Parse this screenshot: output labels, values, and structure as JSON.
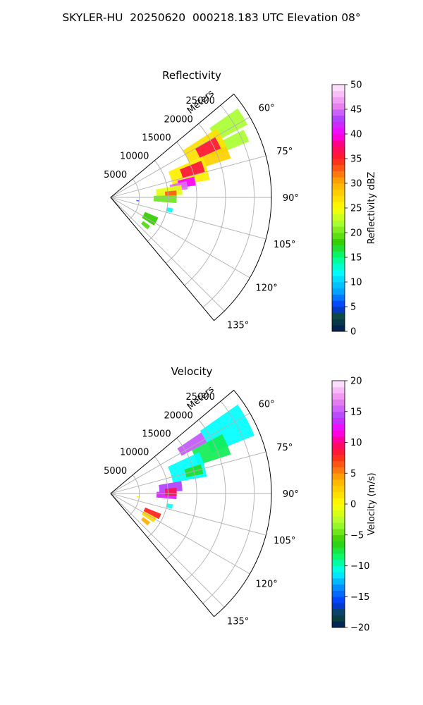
{
  "title": "SKYLER-HU  20250620  000218.183 UTC Elevation 08°",
  "range_axis_label": "Meters",
  "chart_data": [
    {
      "type": "heatmap",
      "subtitle": "Reflectivity",
      "projection": "polar sector (PPI)",
      "azimuth_range_deg": [
        50,
        140
      ],
      "range_limit_m": 28000,
      "radial_tick_labels": [
        "5000",
        "10000",
        "15000",
        "20000",
        "25000"
      ],
      "radial_ticks_m": [
        5000,
        10000,
        15000,
        20000,
        25000
      ],
      "azimuth_tick_labels": [
        "60°",
        "75°",
        "90°",
        "105°",
        "120°",
        "135°"
      ],
      "azimuth_ticks_deg": [
        60,
        75,
        90,
        105,
        120,
        135
      ],
      "grid": true,
      "colorbar": {
        "label": "Reflectivity dBZ",
        "range": [
          0,
          50
        ],
        "tick_labels": [
          "0",
          "5",
          "10",
          "15",
          "20",
          "25",
          "30",
          "35",
          "40",
          "45",
          "50"
        ],
        "ticks": [
          0,
          5,
          10,
          15,
          20,
          25,
          30,
          35,
          40,
          45,
          50
        ],
        "colormap_stops": [
          {
            "v": 0,
            "color": "#001a5a"
          },
          {
            "v": 3,
            "color": "#0f4a3a"
          },
          {
            "v": 5,
            "color": "#0033ff"
          },
          {
            "v": 8,
            "color": "#00a0ff"
          },
          {
            "v": 12,
            "color": "#00ffff"
          },
          {
            "v": 15,
            "color": "#00ff80"
          },
          {
            "v": 18,
            "color": "#33cc00"
          },
          {
            "v": 22,
            "color": "#aaff33"
          },
          {
            "v": 25,
            "color": "#ffff00"
          },
          {
            "v": 30,
            "color": "#ffb000"
          },
          {
            "v": 35,
            "color": "#ff2020"
          },
          {
            "v": 38,
            "color": "#ff0080"
          },
          {
            "v": 40,
            "color": "#ff00ff"
          },
          {
            "v": 43,
            "color": "#b040ff"
          },
          {
            "v": 46,
            "color": "#ee88ee"
          },
          {
            "v": 50,
            "color": "#ffeeff"
          }
        ]
      },
      "echo_regions": [
        {
          "azimuth_deg": [
            55,
            62
          ],
          "range_m": [
            21000,
            27000
          ],
          "value": 22
        },
        {
          "azimuth_deg": [
            63,
            68
          ],
          "range_m": [
            19000,
            26000
          ],
          "value": 22
        },
        {
          "azimuth_deg": [
            57,
            66
          ],
          "range_m": [
            15000,
            22000
          ],
          "value": 27
        },
        {
          "azimuth_deg": [
            66,
            72
          ],
          "range_m": [
            17000,
            22000
          ],
          "value": 28
        },
        {
          "azimuth_deg": [
            60,
            66
          ],
          "range_m": [
            17000,
            21000
          ],
          "value": 36
        },
        {
          "azimuth_deg": [
            66,
            80
          ],
          "range_m": [
            11000,
            17500
          ],
          "value": 26
        },
        {
          "azimuth_deg": [
            68,
            75
          ],
          "range_m": [
            13000,
            17000
          ],
          "value": 36
        },
        {
          "azimuth_deg": [
            76,
            82
          ],
          "range_m": [
            12000,
            15000
          ],
          "value": 40
        },
        {
          "azimuth_deg": [
            78,
            84
          ],
          "range_m": [
            10500,
            13500
          ],
          "value": 45
        },
        {
          "azimuth_deg": [
            80,
            88
          ],
          "range_m": [
            8000,
            12500
          ],
          "value": 24
        },
        {
          "azimuth_deg": [
            84,
            89
          ],
          "range_m": [
            9500,
            11500
          ],
          "value": 33
        },
        {
          "azimuth_deg": [
            88,
            95
          ],
          "range_m": [
            7500,
            11500
          ],
          "value": 20
        },
        {
          "azimuth_deg": [
            113,
            123
          ],
          "range_m": [
            6500,
            9000
          ],
          "value": 18
        },
        {
          "azimuth_deg": [
            126,
            131
          ],
          "range_m": [
            7000,
            8500
          ],
          "value": 19
        },
        {
          "azimuth_deg": [
            100,
            104
          ],
          "range_m": [
            10000,
            11000
          ],
          "value": 12
        },
        {
          "azimuth_deg": [
            96,
            98
          ],
          "range_m": [
            4500,
            5000
          ],
          "value": 6
        }
      ]
    },
    {
      "type": "heatmap",
      "subtitle": "Velocity",
      "projection": "polar sector (PPI)",
      "azimuth_range_deg": [
        50,
        140
      ],
      "range_limit_m": 28000,
      "radial_tick_labels": [
        "5000",
        "10000",
        "15000",
        "20000",
        "25000"
      ],
      "radial_ticks_m": [
        5000,
        10000,
        15000,
        20000,
        25000
      ],
      "azimuth_tick_labels": [
        "60°",
        "75°",
        "90°",
        "105°",
        "120°",
        "135°"
      ],
      "azimuth_ticks_deg": [
        60,
        75,
        90,
        105,
        120,
        135
      ],
      "grid": true,
      "colorbar": {
        "label": "Velocity (m/s)",
        "range": [
          -20,
          20
        ],
        "tick_labels": [
          "−20",
          "−15",
          "−10",
          "−5",
          "0",
          "5",
          "10",
          "15",
          "20"
        ],
        "ticks": [
          -20,
          -15,
          -10,
          -5,
          0,
          5,
          10,
          15,
          20
        ],
        "colormap_stops": [
          {
            "v": -20,
            "color": "#001a5a"
          },
          {
            "v": -18,
            "color": "#0f4a3a"
          },
          {
            "v": -16,
            "color": "#0033ff"
          },
          {
            "v": -13,
            "color": "#00a0ff"
          },
          {
            "v": -11,
            "color": "#00ffff"
          },
          {
            "v": -9,
            "color": "#00ff80"
          },
          {
            "v": -6,
            "color": "#33cc00"
          },
          {
            "v": -3,
            "color": "#aaff33"
          },
          {
            "v": 0,
            "color": "#ffff00"
          },
          {
            "v": 4,
            "color": "#ffb000"
          },
          {
            "v": 8,
            "color": "#ff2020"
          },
          {
            "v": 10,
            "color": "#ff0080"
          },
          {
            "v": 12,
            "color": "#ff00ff"
          },
          {
            "v": 14,
            "color": "#b040ff"
          },
          {
            "v": 17,
            "color": "#ee88ee"
          },
          {
            "v": 20,
            "color": "#ffeeff"
          }
        ]
      },
      "echo_regions": [
        {
          "azimuth_deg": [
            55,
            68
          ],
          "range_m": [
            19000,
            27000
          ],
          "value": -11
        },
        {
          "azimuth_deg": [
            56,
            62
          ],
          "range_m": [
            14000,
            19000
          ],
          "value": 15
        },
        {
          "azimuth_deg": [
            62,
            72
          ],
          "range_m": [
            16000,
            22000
          ],
          "value": -8
        },
        {
          "azimuth_deg": [
            65,
            80
          ],
          "range_m": [
            11000,
            17000
          ],
          "value": -11
        },
        {
          "azimuth_deg": [
            72,
            78
          ],
          "range_m": [
            13500,
            16500
          ],
          "value": -7
        },
        {
          "azimuth_deg": [
            80,
            88
          ],
          "range_m": [
            8500,
            12500
          ],
          "value": 14
        },
        {
          "azimuth_deg": [
            88,
            95
          ],
          "range_m": [
            8000,
            11500
          ],
          "value": 13
        },
        {
          "azimuth_deg": [
            85,
            92
          ],
          "range_m": [
            9500,
            11500
          ],
          "value": 9
        },
        {
          "azimuth_deg": [
            112,
            118
          ],
          "range_m": [
            6500,
            9500
          ],
          "value": 8
        },
        {
          "azimuth_deg": [
            118,
            124
          ],
          "range_m": [
            6500,
            9000
          ],
          "value": 2
        },
        {
          "azimuth_deg": [
            126,
            131
          ],
          "range_m": [
            7000,
            8500
          ],
          "value": 4
        },
        {
          "azimuth_deg": [
            100,
            104
          ],
          "range_m": [
            10000,
            11000
          ],
          "value": -11
        },
        {
          "azimuth_deg": [
            96,
            98
          ],
          "range_m": [
            4500,
            5000
          ],
          "value": 1
        }
      ]
    }
  ]
}
